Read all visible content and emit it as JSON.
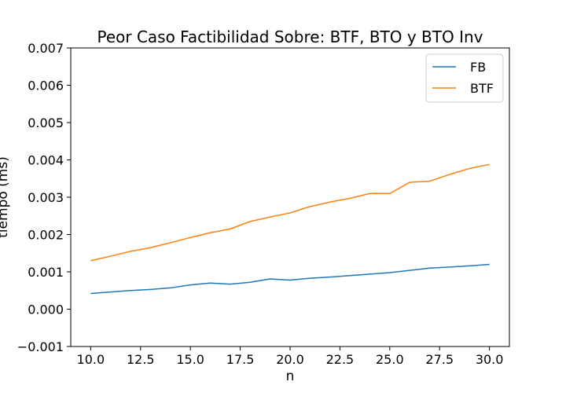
{
  "chart_data": {
    "type": "line",
    "title": "Peor Caso Factibilidad Sobre: BTF, BTO y BTO Inv",
    "xlabel": "n",
    "ylabel": "tiempo (ms)",
    "xlim": [
      9.0,
      31.0
    ],
    "ylim": [
      -0.001,
      0.007
    ],
    "x_ticks": [
      10.0,
      12.5,
      15.0,
      17.5,
      20.0,
      22.5,
      25.0,
      27.5,
      30.0
    ],
    "x_tick_labels": [
      "10.0",
      "12.5",
      "15.0",
      "17.5",
      "20.0",
      "22.5",
      "25.0",
      "27.5",
      "30.0"
    ],
    "y_ticks": [
      -0.001,
      0.0,
      0.001,
      0.002,
      0.003,
      0.004,
      0.005,
      0.006,
      0.007
    ],
    "y_tick_labels": [
      "−0.001",
      "0.000",
      "0.001",
      "0.002",
      "0.003",
      "0.004",
      "0.005",
      "0.006",
      "0.007"
    ],
    "grid": false,
    "legend_position": "top-right",
    "x": [
      10,
      11,
      12,
      13,
      14,
      15,
      16,
      17,
      18,
      19,
      20,
      21,
      22,
      23,
      24,
      25,
      26,
      27,
      28,
      29,
      30
    ],
    "series": [
      {
        "name": "FB",
        "color": "#1f77b4",
        "values": [
          0.00042,
          0.00046,
          0.0005,
          0.00053,
          0.00057,
          0.00065,
          0.0007,
          0.00067,
          0.00072,
          0.00081,
          0.00078,
          0.00083,
          0.00086,
          0.0009,
          0.00094,
          0.00098,
          0.00104,
          0.0011,
          0.00113,
          0.00116,
          0.0012
        ]
      },
      {
        "name": "BTF",
        "color": "#ff7f0e",
        "values": [
          0.0013,
          0.00142,
          0.00155,
          0.00165,
          0.00178,
          0.00192,
          0.00205,
          0.00215,
          0.00235,
          0.00247,
          0.00258,
          0.00275,
          0.00287,
          0.00297,
          0.0031,
          0.0031,
          0.0034,
          0.00343,
          0.00361,
          0.00377,
          0.00388
        ]
      }
    ]
  }
}
